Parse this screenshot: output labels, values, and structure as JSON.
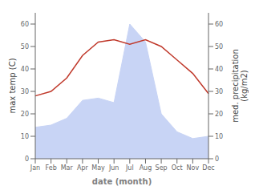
{
  "chart_data": {
    "type": "line",
    "xlabel": "date (month)",
    "ylabel": "max temp (C)",
    "y2label": "med. precipitation\n(kg/m2)",
    "categories": [
      "Jan",
      "Feb",
      "Mar",
      "Apr",
      "May",
      "Jun",
      "Jul",
      "Aug",
      "Sep",
      "Oct",
      "Nov",
      "Dec"
    ],
    "series": [
      {
        "type": "line",
        "color": "#c0392b",
        "axis": "y",
        "values": [
          28,
          30,
          36,
          46,
          52,
          53,
          51,
          53,
          50,
          44,
          38,
          29
        ]
      },
      {
        "type": "area",
        "color": "#c8d4f5",
        "axis": "y2",
        "values": [
          14,
          15,
          18,
          26,
          27,
          25,
          60,
          52,
          20,
          12,
          9,
          10
        ]
      }
    ],
    "ylim": [
      0,
      65
    ],
    "yticks": [
      0,
      10,
      20,
      30,
      40,
      50,
      60
    ],
    "y2lim": [
      0,
      65
    ],
    "y2ticks": [
      0,
      10,
      20,
      30,
      40,
      50,
      60
    ],
    "grid": false
  }
}
